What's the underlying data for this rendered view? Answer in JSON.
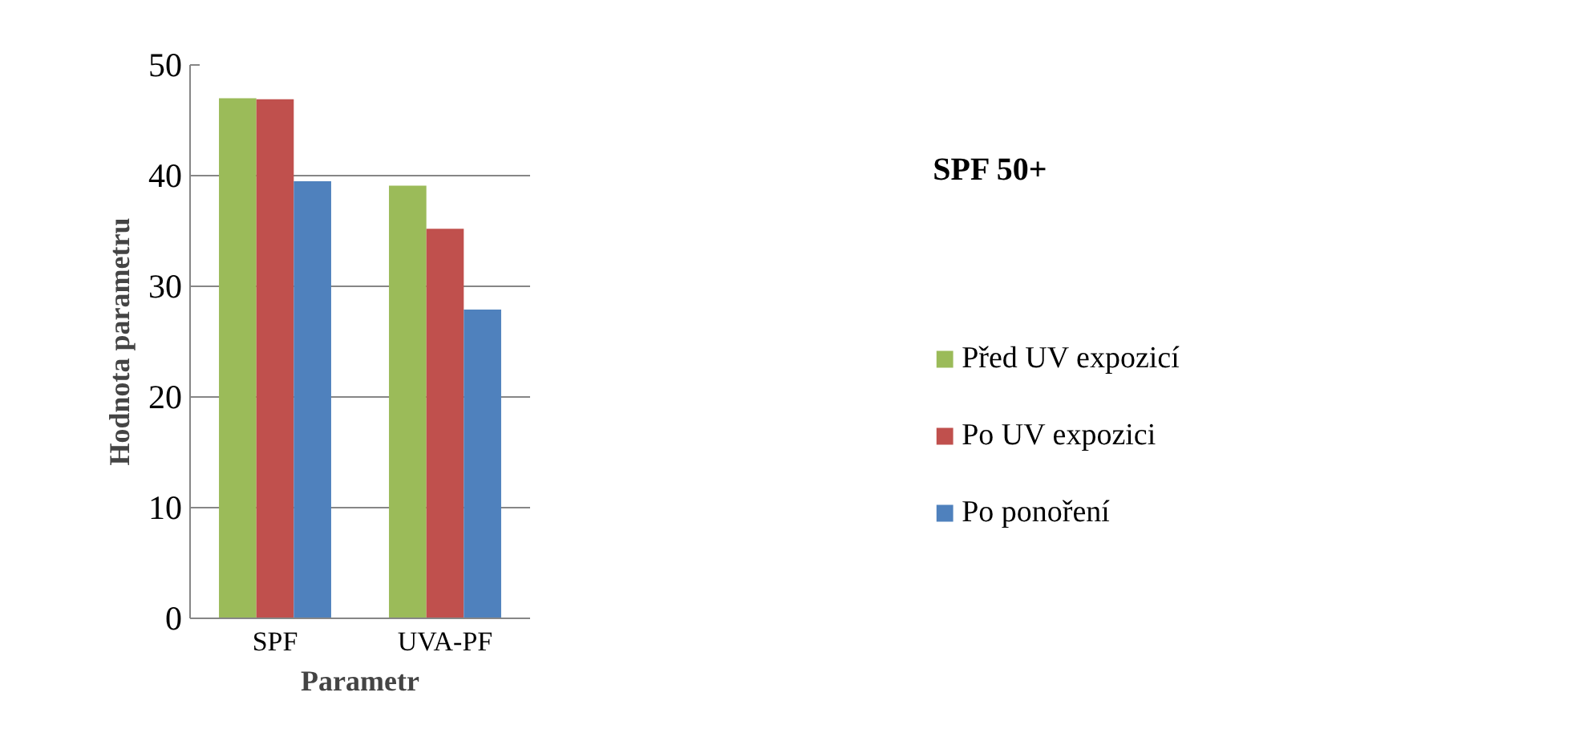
{
  "chart_data": {
    "type": "bar",
    "title": "SPF 50+",
    "xlabel": "Parametr",
    "ylabel": "Hodnota parametru",
    "categories": [
      "SPF",
      "UVA-PF"
    ],
    "series": [
      {
        "name": "Před UV expozicí",
        "color": "#9bbb59",
        "values": [
          47.0,
          39.1
        ]
      },
      {
        "name": "Po UV expozici",
        "color": "#c0504d",
        "values": [
          46.9,
          35.2
        ]
      },
      {
        "name": "Po ponoření",
        "color": "#4f81bd",
        "values": [
          39.5,
          27.9
        ]
      }
    ],
    "ylim": [
      0,
      50
    ],
    "yticks": [
      0,
      10,
      20,
      30,
      40,
      50
    ],
    "grid": "y",
    "legend": "right"
  }
}
